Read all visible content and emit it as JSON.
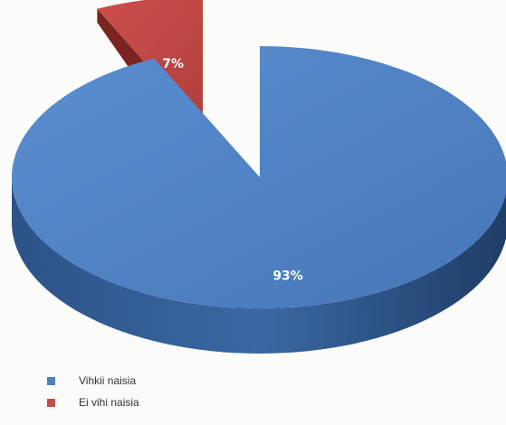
{
  "chart_data": {
    "type": "pie",
    "style": "3d-exploded",
    "slices": [
      {
        "label": "Vihkii naisia",
        "value": 93,
        "data_label": "93%",
        "color": "#4f81bd"
      },
      {
        "label": "Ei vihi naisia",
        "value": 7,
        "data_label": "7%",
        "color": "#c0504d"
      }
    ],
    "legend": {
      "placement": "bottom-left"
    }
  }
}
